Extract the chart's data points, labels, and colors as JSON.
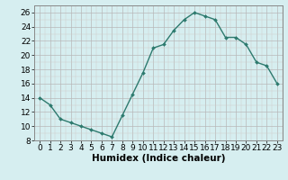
{
  "x": [
    0,
    1,
    2,
    3,
    4,
    5,
    6,
    7,
    8,
    9,
    10,
    11,
    12,
    13,
    14,
    15,
    16,
    17,
    18,
    19,
    20,
    21,
    22,
    23
  ],
  "y": [
    14,
    13,
    11,
    10.5,
    10,
    9.5,
    9,
    8.5,
    11.5,
    14.5,
    17.5,
    21,
    21.5,
    23.5,
    25,
    26,
    25.5,
    25,
    22.5,
    22.5,
    21.5,
    19,
    18.5,
    16
  ],
  "line_color": "#2d7a6e",
  "marker": "D",
  "marker_size": 2.0,
  "line_width": 1.0,
  "background_color": "#d6eef0",
  "grid_color": "#b8b8b8",
  "grid_color_minor": "#d0c8c8",
  "xlabel": "Humidex (Indice chaleur)",
  "ylim": [
    8,
    27
  ],
  "yticks": [
    8,
    10,
    12,
    14,
    16,
    18,
    20,
    22,
    24,
    26
  ],
  "xtick_labels": [
    "0",
    "1",
    "2",
    "3",
    "4",
    "5",
    "6",
    "7",
    "8",
    "9",
    "10",
    "11",
    "12",
    "13",
    "14",
    "15",
    "16",
    "17",
    "18",
    "19",
    "20",
    "21",
    "22",
    "23"
  ],
  "xlabel_fontsize": 7.5,
  "tick_fontsize": 6.5,
  "axis_line_color": "#888888"
}
